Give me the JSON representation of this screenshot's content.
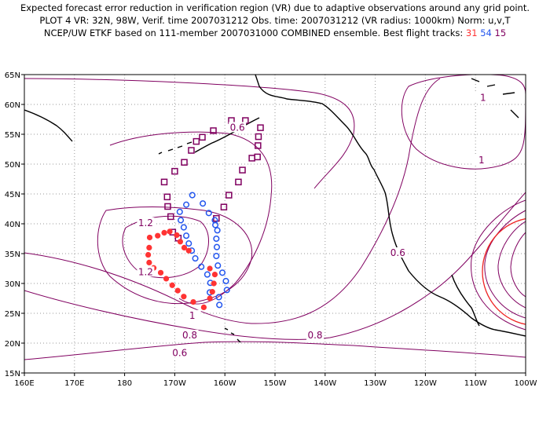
{
  "header": {
    "line1": "Expected forecast error reduction in verification region (VR) due to adaptive observations around any grid point.",
    "line2": "PLOT 4 VR: 32N, 98W, Verif. time 2007031212 Obs. time: 2007031212 (VR radius: 1000km) Norm: u,v,T",
    "line3_prefix": "NCEP/UW ETKF based on 111-member 2007031000 COMBINED ensemble.  Best flight tracks:",
    "track_31": "31",
    "track_54": "54",
    "track_15": "15"
  },
  "colors": {
    "contour": "#800060",
    "track_31": "#ff3333",
    "track_54": "#2255ee",
    "track_15": "#800060",
    "verification_region": "#ee2222",
    "coastline": "#000000",
    "grid": "#999999"
  },
  "axes": {
    "lat_labels": [
      "15N",
      "20N",
      "25N",
      "30N",
      "35N",
      "40N",
      "45N",
      "50N",
      "55N",
      "60N",
      "65N"
    ],
    "lon_labels": [
      "160E",
      "170E",
      "180",
      "170W",
      "160W",
      "150W",
      "140W",
      "130W",
      "120W",
      "110W",
      "100W"
    ]
  },
  "contour_labels": [
    {
      "text": "0.6",
      "lon": 202.5,
      "lat": 56.0
    },
    {
      "text": "1.2",
      "lon": 184.2,
      "lat": 40.0
    },
    {
      "text": "1.2",
      "lon": 184.2,
      "lat": 31.8
    },
    {
      "text": "1",
      "lon": 193.5,
      "lat": 24.5
    },
    {
      "text": "0.8",
      "lon": 193.0,
      "lat": 21.2
    },
    {
      "text": "0.8",
      "lon": 218.0,
      "lat": 21.2
    },
    {
      "text": "0.6",
      "lon": 191.0,
      "lat": 18.2
    },
    {
      "text": "0.6",
      "lon": 234.5,
      "lat": 35.0
    },
    {
      "text": "1",
      "lon": 251.5,
      "lat": 61.0
    },
    {
      "text": "1",
      "lon": 251.2,
      "lat": 50.5
    }
  ],
  "tracks": {
    "track_15": [
      [
        187.9,
        47.0
      ],
      [
        188.5,
        44.5
      ],
      [
        188.6,
        42.9
      ],
      [
        189.2,
        41.2
      ],
      [
        189.6,
        38.6
      ],
      [
        190.7,
        37.6
      ],
      [
        190.0,
        48.8
      ],
      [
        191.9,
        50.3
      ],
      [
        193.3,
        52.3
      ],
      [
        194.3,
        53.8
      ],
      [
        195.5,
        54.5
      ],
      [
        197.7,
        55.6
      ],
      [
        201.3,
        57.3
      ],
      [
        204.1,
        57.3
      ],
      [
        207.1,
        56.1
      ],
      [
        206.7,
        54.6
      ],
      [
        206.6,
        53.1
      ],
      [
        206.5,
        51.2
      ],
      [
        205.4,
        51.0
      ],
      [
        203.5,
        49.0
      ],
      [
        202.7,
        47.0
      ],
      [
        200.8,
        44.8
      ],
      [
        199.8,
        42.8
      ],
      [
        198.3,
        40.9
      ]
    ],
    "track_54": [
      [
        193.5,
        44.8
      ],
      [
        195.6,
        43.4
      ],
      [
        196.8,
        41.8
      ],
      [
        198.0,
        40.6
      ],
      [
        192.3,
        43.2
      ],
      [
        191.0,
        42.0
      ],
      [
        191.2,
        40.6
      ],
      [
        191.8,
        39.4
      ],
      [
        192.3,
        38.0
      ],
      [
        192.8,
        36.7
      ],
      [
        193.4,
        35.5
      ],
      [
        194.1,
        34.2
      ],
      [
        195.3,
        32.8
      ],
      [
        196.5,
        31.5
      ],
      [
        197.1,
        30.1
      ],
      [
        197.0,
        28.5
      ],
      [
        198.8,
        27.7
      ],
      [
        198.9,
        26.4
      ],
      [
        200.4,
        28.9
      ],
      [
        200.2,
        30.4
      ],
      [
        199.5,
        31.8
      ],
      [
        198.6,
        33.0
      ],
      [
        198.3,
        34.6
      ],
      [
        198.4,
        36.1
      ],
      [
        198.3,
        37.5
      ],
      [
        198.5,
        38.9
      ],
      [
        198.1,
        39.8
      ]
    ],
    "track_31": [
      [
        192.8,
        35.5
      ],
      [
        191.9,
        36.0
      ],
      [
        191.1,
        37.0
      ],
      [
        190.4,
        38.1
      ],
      [
        189.0,
        38.7
      ],
      [
        187.9,
        38.5
      ],
      [
        186.6,
        38.0
      ],
      [
        185.0,
        37.7
      ],
      [
        184.9,
        36.0
      ],
      [
        184.7,
        34.8
      ],
      [
        184.9,
        33.5
      ],
      [
        185.8,
        32.6
      ],
      [
        187.2,
        31.8
      ],
      [
        188.3,
        30.8
      ],
      [
        189.5,
        29.7
      ],
      [
        190.6,
        28.8
      ],
      [
        191.8,
        27.8
      ],
      [
        193.7,
        26.9
      ],
      [
        195.8,
        26.0
      ],
      [
        197.0,
        27.5
      ],
      [
        197.5,
        28.6
      ],
      [
        197.8,
        30.0
      ],
      [
        198.0,
        31.5
      ],
      [
        197.0,
        32.5
      ]
    ]
  },
  "verification_region": {
    "center_lon": 262.0,
    "center_lat": 32.0,
    "radius_km": 1000
  }
}
